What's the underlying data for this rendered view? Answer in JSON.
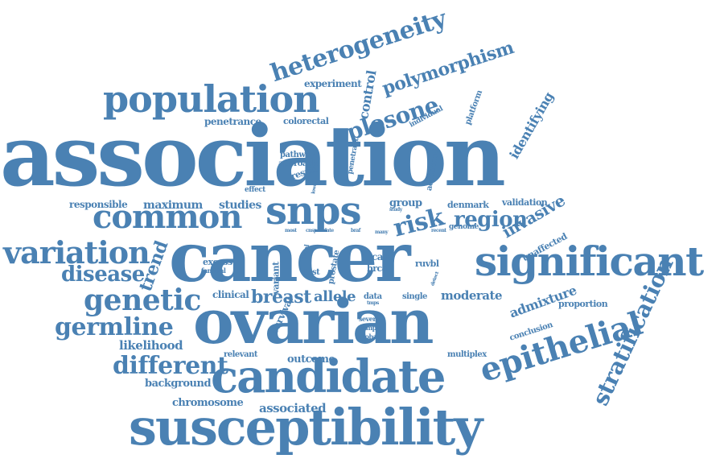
{
  "words": {
    "association": "association",
    "cancer": "cancer",
    "ovarian": "ovarian",
    "susceptibility": "susceptibility",
    "candidate": "candidate",
    "significant": "significant",
    "population": "population",
    "snps": "snps",
    "common": "common",
    "variation": "variation",
    "genetic": "genetic",
    "germline": "germline",
    "different": "different",
    "disease": "disease",
    "epithelial": "epithelial",
    "heterogeneity": "heterogeneity",
    "plosone": "plosone",
    "risk": "risk",
    "region": "region",
    "polymorphism": "polymorphism",
    "stratification": "stratification",
    "breast": "breast",
    "trend": "trend",
    "invasive": "invasive",
    "admixture": "admixture",
    "moderate": "moderate",
    "allele": "allele",
    "identifying": "identifying",
    "control": "control",
    "likelihood": "likelihood",
    "maximum": "maximum",
    "studies": "studies",
    "responsible": "responsible",
    "penetrance": "penetrance",
    "colorectal": "colorectal",
    "experiment": "experiment",
    "associated": "associated",
    "chromosome": "chromosome",
    "background": "background",
    "outcome": "outcome",
    "relevant": "relevant",
    "proportion": "proportion",
    "validation": "validation",
    "group": "group",
    "denmark": "denmark",
    "genome": "genome",
    "unaffected": "unaffected",
    "conclusion": "conclusion",
    "multiplex": "multiplex",
    "clinical": "clinical",
    "excess": "excess",
    "familial": "familial",
    "variant": "variant",
    "test": "test",
    "case": "case",
    "brca": "brca",
    "ruvbl": "ruvbl",
    "data": "data",
    "single": "single",
    "several": "several",
    "sample": "sample",
    "global": "global",
    "survival": "survival",
    "prostate": "prostate",
    "level": "level",
    "pathway": "pathway",
    "approach": "approach",
    "result": "result",
    "effect": "effect",
    "lower": "lower",
    "additional": "additional",
    "penetrant": "penetrant",
    "individual": "individual",
    "platform": "platform",
    "most": "most",
    "cnsp": "cnsp",
    "date": "date",
    "braf": "braf",
    "many": "many",
    "recent": "recent",
    "study": "study",
    "detect": "detect",
    "tmps": "tmps",
    "high": "high"
  },
  "colors": {
    "word": "#4a81b3",
    "background": "#ffffff"
  }
}
